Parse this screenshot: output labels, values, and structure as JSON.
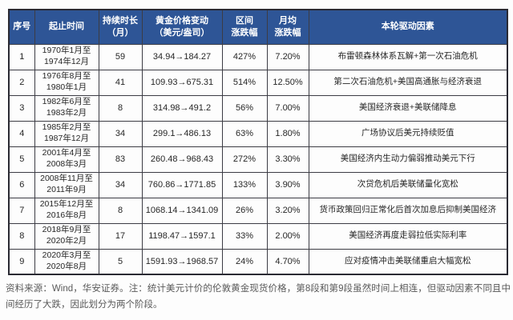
{
  "colors": {
    "header_bg": "#2e5596",
    "header_text": "#ffffff",
    "border": "#3c3c44",
    "body_text": "#262626",
    "note_text": "#595959"
  },
  "table": {
    "headers": [
      "序号",
      "起止时间",
      "持续时长\n（月）",
      "黄金价格变动\n（美元/盎司）",
      "区间\n涨跌幅",
      "月均\n涨跌幅",
      "本轮驱动因素"
    ],
    "rows": [
      {
        "no": "1",
        "period": "1970年1月至\n1974年12月",
        "months": "59",
        "price_change": "34.94→184.27",
        "range_pct": "427%",
        "monthly_pct": "7.20%",
        "driver": "布雷顿森林体系瓦解+第一次石油危机"
      },
      {
        "no": "2",
        "period": "1976年8月至\n1980年1月",
        "months": "41",
        "price_change": "109.93→675.31",
        "range_pct": "514%",
        "monthly_pct": "12.50%",
        "driver": "第二次石油危机+美国高通胀与经济衰退"
      },
      {
        "no": "3",
        "period": "1982年6月至\n1983年2月",
        "months": "8",
        "price_change": "314.98→491.2",
        "range_pct": "56%",
        "monthly_pct": "7.00%",
        "driver": "美国经济衰退+美联储降息"
      },
      {
        "no": "4",
        "period": "1985年2月至\n1987年12月",
        "months": "34",
        "price_change": "299.1→486.13",
        "range_pct": "63%",
        "monthly_pct": "1.80%",
        "driver": "广场协议后美元持续贬值"
      },
      {
        "no": "5",
        "period": "2001年4月至\n2008年3月",
        "months": "83",
        "price_change": "260.48→968.43",
        "range_pct": "272%",
        "monthly_pct": "3.30%",
        "driver": "美国经济内生动力偏弱推动美元下行"
      },
      {
        "no": "6",
        "period": "2008年11月至\n2011年9月",
        "months": "34",
        "price_change": "760.86→1771.85",
        "range_pct": "133%",
        "monthly_pct": "3.90%",
        "driver": "次贷危机后美联储量化宽松"
      },
      {
        "no": "7",
        "period": "2015年12月至\n2016年8月",
        "months": "8",
        "price_change": "1068.14→1341.09",
        "range_pct": "26%",
        "monthly_pct": "3.20%",
        "driver": "货币政策回归正常化后首次加息后抑制美国经济"
      },
      {
        "no": "8",
        "period": "2018年9月至\n2020年2月",
        "months": "17",
        "price_change": "1198.47→1597.1",
        "range_pct": "33%",
        "monthly_pct": "2.00%",
        "driver": "美国经济再度走弱拉低实际利率"
      },
      {
        "no": "9",
        "period": "2020年3月至\n2020年8月",
        "months": "5",
        "price_change": "1591.93→1968.57",
        "range_pct": "24%",
        "monthly_pct": "4.70%",
        "driver": "应对疫情冲击美联储重启大幅宽松"
      }
    ]
  },
  "footer": {
    "note": "资料来源：Wind，华安证券。注：统计美元计价的伦敦黄金现货价格，第8段和第9段虽然时间上相连，但驱动因素不同且中间经历了大跌，因此划分为两个阶段。"
  }
}
